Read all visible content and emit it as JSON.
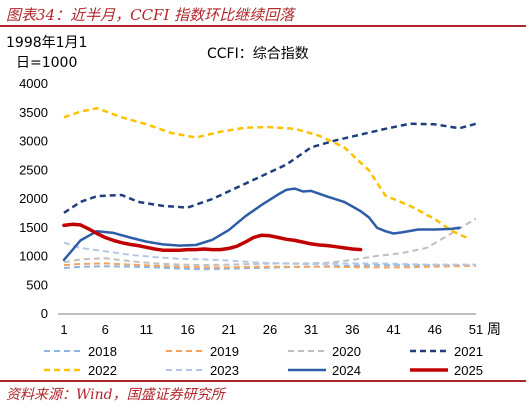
{
  "header": {
    "title": "图表34：近半月，CCFI 指数环比继续回落"
  },
  "footer": {
    "source": "资料来源：Wind，国盛证券研究所"
  },
  "colors": {
    "accent": "#b0262b",
    "2018": "#8eb4e3",
    "2019": "#f4a460",
    "2020": "#bfbfbf",
    "2021": "#1f3f7a",
    "2022": "#ffc000",
    "2023": "#b4c7e7",
    "2024": "#2e5da8",
    "2025": "#c00000"
  },
  "chart_data": {
    "type": "line",
    "title": "CCFI：综合指数",
    "ylabel_line1": "1998年1月1",
    "ylabel_line2": "日=1000",
    "xlabel": "周",
    "ylim": [
      0,
      4000
    ],
    "xlim": [
      1,
      51
    ],
    "yticks": [
      0,
      500,
      1000,
      1500,
      2000,
      2500,
      3000,
      3500,
      4000
    ],
    "xticks": [
      1,
      6,
      11,
      16,
      21,
      26,
      31,
      36,
      41,
      46,
      51
    ],
    "legend_position": "bottom",
    "series": [
      {
        "name": "2018",
        "style": "dashed",
        "color": "#8eb4e3",
        "width": 2,
        "x": [
          1,
          3,
          6,
          9,
          12,
          15,
          18,
          21,
          24,
          27,
          30,
          33,
          36,
          39,
          42,
          45,
          48,
          51
        ],
        "y": [
          800,
          820,
          830,
          825,
          810,
          790,
          780,
          790,
          800,
          810,
          820,
          830,
          840,
          850,
          850,
          850,
          845,
          840
        ]
      },
      {
        "name": "2019",
        "style": "dashed",
        "color": "#f4a460",
        "width": 2,
        "x": [
          1,
          3,
          6,
          9,
          12,
          15,
          18,
          21,
          24,
          27,
          30,
          33,
          36,
          39,
          42,
          45,
          48,
          51
        ],
        "y": [
          850,
          870,
          880,
          860,
          840,
          820,
          810,
          810,
          820,
          820,
          820,
          820,
          815,
          810,
          810,
          820,
          830,
          840
        ]
      },
      {
        "name": "2020",
        "style": "dashed",
        "color": "#bfbfbf",
        "width": 2,
        "x": [
          1,
          3,
          6,
          9,
          12,
          15,
          18,
          21,
          24,
          27,
          30,
          33,
          36,
          39,
          42,
          45,
          48,
          51
        ],
        "y": [
          900,
          950,
          970,
          920,
          880,
          860,
          850,
          860,
          870,
          880,
          880,
          890,
          940,
          1010,
          1060,
          1150,
          1400,
          1660
        ]
      },
      {
        "name": "2021",
        "style": "dashed",
        "color": "#1f3f7a",
        "width": 2.5,
        "x": [
          1,
          3,
          5,
          8,
          10,
          13,
          16,
          19,
          22,
          25,
          28,
          31,
          34,
          37,
          40,
          43,
          46,
          49,
          51
        ],
        "y": [
          1760,
          1950,
          2050,
          2070,
          1950,
          1880,
          1850,
          2000,
          2200,
          2400,
          2600,
          2900,
          3020,
          3120,
          3220,
          3310,
          3300,
          3230,
          3310
        ]
      },
      {
        "name": "2022",
        "style": "dashed",
        "color": "#ffc000",
        "width": 2.5,
        "x": [
          1,
          3,
          5,
          8,
          11,
          14,
          17,
          20,
          23,
          26,
          29,
          32,
          35,
          38,
          40,
          43,
          46,
          48,
          50
        ],
        "y": [
          3420,
          3520,
          3580,
          3420,
          3300,
          3150,
          3070,
          3170,
          3240,
          3250,
          3220,
          3100,
          2900,
          2500,
          2060,
          1880,
          1650,
          1450,
          1320
        ]
      },
      {
        "name": "2023",
        "style": "dashed",
        "color": "#b4c7e7",
        "width": 2,
        "x": [
          1,
          3,
          6,
          9,
          12,
          15,
          18,
          21,
          24,
          27,
          30,
          33,
          36,
          39,
          42,
          45,
          48,
          51
        ],
        "y": [
          1240,
          1150,
          1090,
          1030,
          990,
          960,
          950,
          930,
          900,
          880,
          870,
          870,
          880,
          880,
          870,
          860,
          860,
          860
        ]
      },
      {
        "name": "2024",
        "style": "solid",
        "color": "#2e5da8",
        "width": 2.5,
        "x": [
          1,
          3,
          5,
          7,
          9,
          11,
          13,
          15,
          17,
          19,
          21,
          23,
          25,
          27,
          28,
          29,
          30,
          31,
          33,
          35,
          37,
          38,
          39,
          40,
          41,
          42,
          44,
          46,
          48,
          49
        ],
        "y": [
          940,
          1280,
          1440,
          1410,
          1330,
          1260,
          1210,
          1190,
          1200,
          1290,
          1460,
          1700,
          1900,
          2080,
          2160,
          2180,
          2130,
          2140,
          2040,
          1950,
          1790,
          1680,
          1500,
          1440,
          1400,
          1420,
          1470,
          1470,
          1480,
          1500
        ]
      },
      {
        "name": "2025",
        "style": "solid",
        "color": "#c00000",
        "width": 3.5,
        "x": [
          1,
          2,
          3,
          4,
          5,
          6,
          7,
          8,
          9,
          10,
          11,
          12,
          13,
          14,
          15,
          16,
          17,
          18,
          19,
          20,
          21,
          22,
          23,
          24,
          25,
          26,
          27,
          28,
          29,
          30,
          31,
          32,
          33,
          34,
          35,
          36,
          37
        ],
        "y": [
          1540,
          1560,
          1550,
          1480,
          1400,
          1330,
          1280,
          1240,
          1210,
          1190,
          1160,
          1130,
          1110,
          1110,
          1110,
          1120,
          1120,
          1130,
          1120,
          1120,
          1140,
          1180,
          1250,
          1330,
          1370,
          1360,
          1330,
          1300,
          1280,
          1250,
          1220,
          1200,
          1190,
          1170,
          1150,
          1130,
          1120
        ]
      }
    ]
  }
}
